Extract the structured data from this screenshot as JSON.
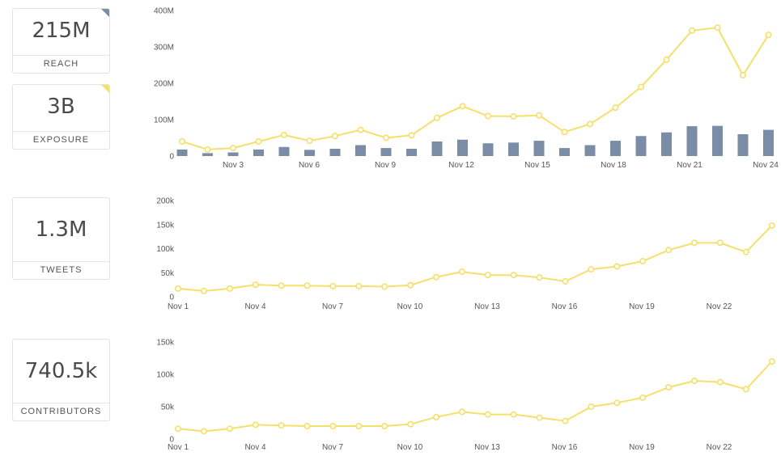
{
  "cards": [
    {
      "value": "215M",
      "label": "REACH",
      "corner_color": "#7a8ca6"
    },
    {
      "value": "3B",
      "label": "EXPOSURE",
      "corner_color": "#f6df6a"
    },
    {
      "value": "1.3M",
      "label": "TWEETS"
    },
    {
      "value": "740.5k",
      "label": "CONTRIBUTORS"
    }
  ],
  "colors": {
    "line": "#f6df6a",
    "bar": "#7a8ca6",
    "point_fill": "#ffffff"
  },
  "chart_data": [
    {
      "type": "bar+line",
      "xticks": [
        "Nov 3",
        "Nov 6",
        "Nov 9",
        "Nov 12",
        "Nov 15",
        "Nov 18",
        "Nov 21",
        "Nov 24"
      ],
      "yticks": [
        "0",
        "100M",
        "200M",
        "300M",
        "400M"
      ],
      "ylim": [
        0,
        400
      ],
      "categories": [
        "Nov 1",
        "Nov 2",
        "Nov 3",
        "Nov 4",
        "Nov 5",
        "Nov 6",
        "Nov 7",
        "Nov 8",
        "Nov 9",
        "Nov 10",
        "Nov 11",
        "Nov 12",
        "Nov 13",
        "Nov 14",
        "Nov 15",
        "Nov 16",
        "Nov 17",
        "Nov 18",
        "Nov 19",
        "Nov 20",
        "Nov 21",
        "Nov 22",
        "Nov 23",
        "Nov 24"
      ],
      "series": [
        {
          "kind": "bar",
          "color": "#7a8ca6",
          "values": [
            18,
            8,
            10,
            18,
            25,
            17,
            20,
            30,
            22,
            20,
            40,
            45,
            35,
            37,
            42,
            22,
            30,
            42,
            55,
            65,
            82,
            83,
            60,
            72
          ]
        },
        {
          "kind": "line",
          "color": "#f6df6a",
          "values": [
            40,
            18,
            22,
            40,
            58,
            42,
            55,
            72,
            50,
            57,
            105,
            137,
            110,
            109,
            112,
            66,
            88,
            133,
            190,
            265,
            345,
            353,
            222,
            333
          ]
        }
      ]
    },
    {
      "type": "line",
      "xticks": [
        "Nov 1",
        "Nov 4",
        "Nov 7",
        "Nov 10",
        "Nov 13",
        "Nov 16",
        "Nov 19",
        "Nov 22"
      ],
      "yticks": [
        "0",
        "50k",
        "100k",
        "150k",
        "200k"
      ],
      "ylim": [
        0,
        200
      ],
      "categories": [
        "Nov 1",
        "Nov 2",
        "Nov 3",
        "Nov 4",
        "Nov 5",
        "Nov 6",
        "Nov 7",
        "Nov 8",
        "Nov 9",
        "Nov 10",
        "Nov 11",
        "Nov 12",
        "Nov 13",
        "Nov 14",
        "Nov 15",
        "Nov 16",
        "Nov 17",
        "Nov 18",
        "Nov 19",
        "Nov 20",
        "Nov 21",
        "Nov 22",
        "Nov 23",
        "Nov 24"
      ],
      "series": [
        {
          "kind": "line",
          "color": "#f6df6a",
          "values": [
            17,
            12,
            17,
            25,
            23,
            23,
            22,
            22,
            21,
            24,
            41,
            52,
            45,
            45,
            40,
            32,
            57,
            63,
            74,
            97,
            112,
            112,
            93,
            148
          ]
        }
      ]
    },
    {
      "type": "line",
      "xticks": [
        "Nov 1",
        "Nov 4",
        "Nov 7",
        "Nov 10",
        "Nov 13",
        "Nov 16",
        "Nov 19",
        "Nov 22"
      ],
      "yticks": [
        "0",
        "50k",
        "100k",
        "150k"
      ],
      "ylim": [
        0,
        150
      ],
      "categories": [
        "Nov 1",
        "Nov 2",
        "Nov 3",
        "Nov 4",
        "Nov 5",
        "Nov 6",
        "Nov 7",
        "Nov 8",
        "Nov 9",
        "Nov 10",
        "Nov 11",
        "Nov 12",
        "Nov 13",
        "Nov 14",
        "Nov 15",
        "Nov 16",
        "Nov 17",
        "Nov 18",
        "Nov 19",
        "Nov 20",
        "Nov 21",
        "Nov 22",
        "Nov 23",
        "Nov 24"
      ],
      "series": [
        {
          "kind": "line",
          "color": "#f6df6a",
          "values": [
            16,
            12,
            16,
            22,
            21,
            20,
            20,
            20,
            20,
            23,
            34,
            42,
            38,
            38,
            33,
            28,
            50,
            56,
            64,
            80,
            90,
            88,
            77,
            120
          ]
        }
      ]
    }
  ]
}
